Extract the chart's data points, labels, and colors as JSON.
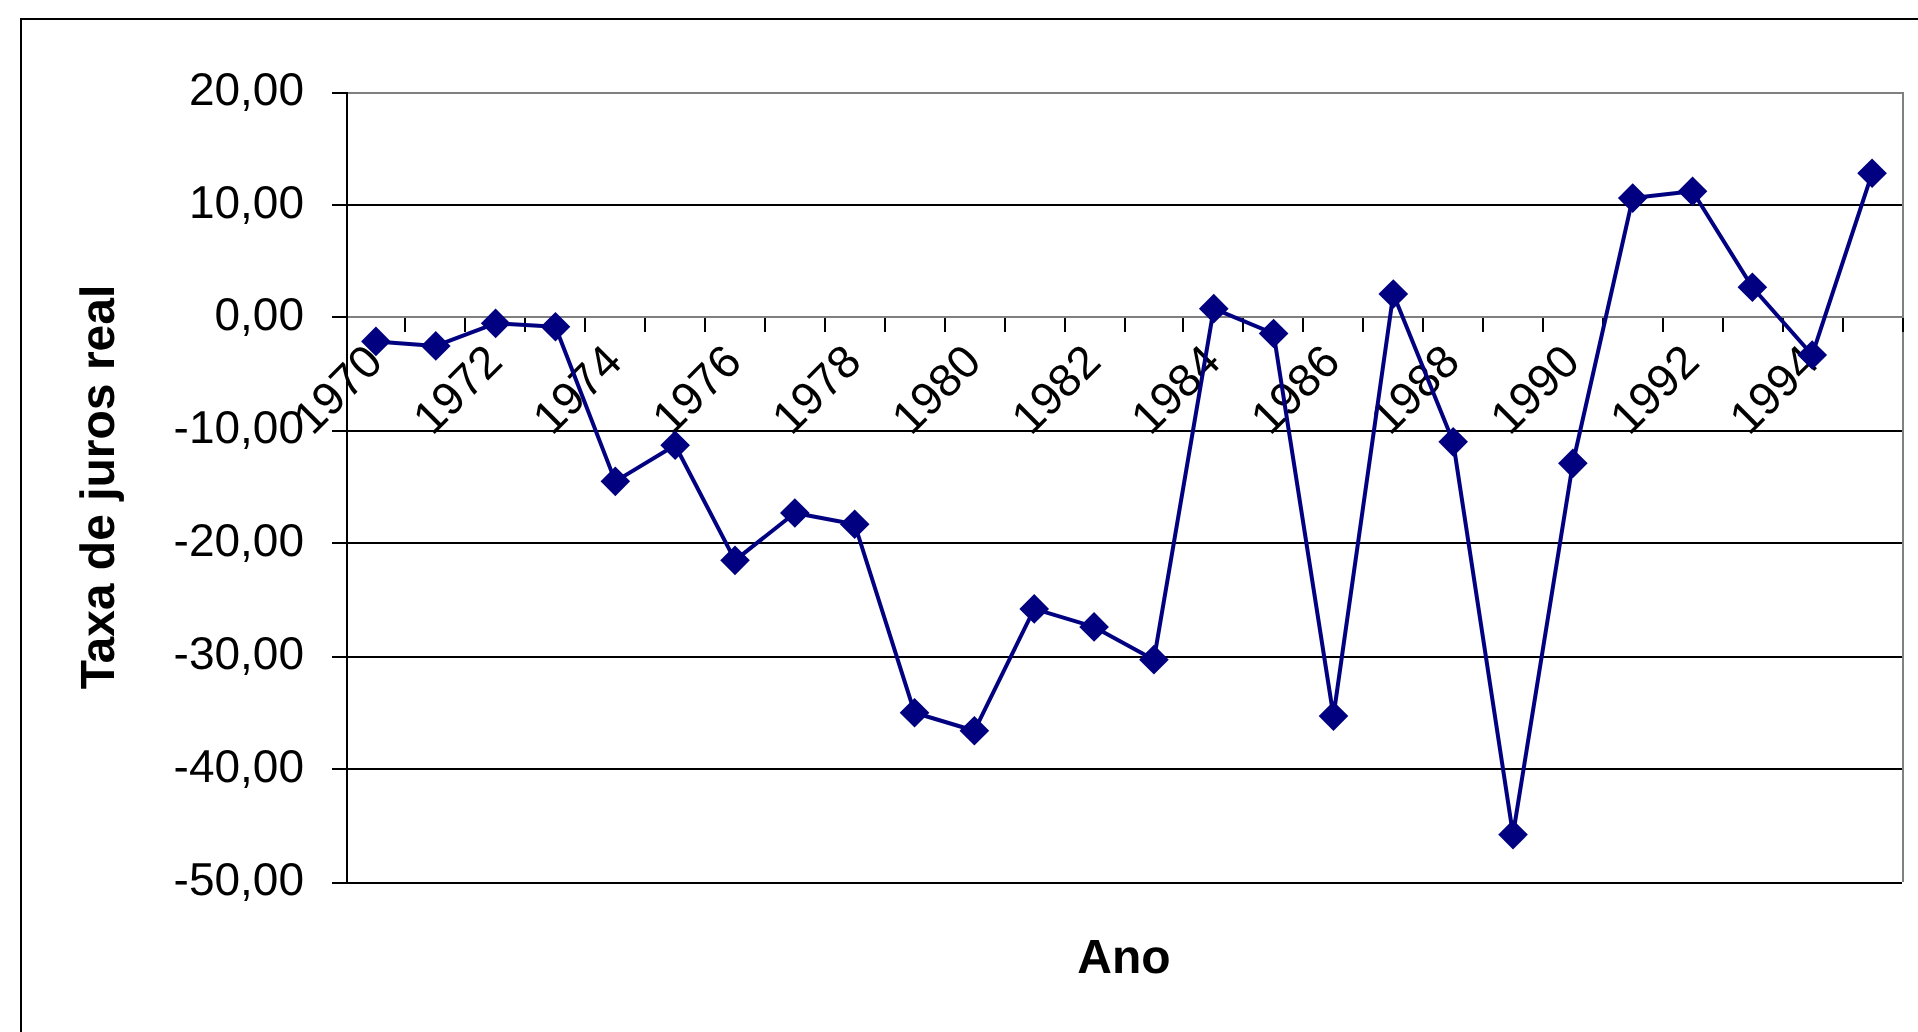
{
  "chart_data": {
    "type": "line",
    "xlabel": "Ano",
    "ylabel": "Taxa de juros real",
    "categories": [
      "1970",
      null,
      "1972",
      null,
      "1974",
      null,
      "1976",
      null,
      "1978",
      null,
      "1980",
      null,
      "1982",
      null,
      "1984",
      null,
      "1986",
      null,
      "1988",
      null,
      "1990",
      null,
      "1992",
      null,
      "1994",
      null
    ],
    "series": [
      {
        "color": "#000080",
        "values": [
          -2.1,
          -2.5,
          -0.5,
          -0.8,
          -14.5,
          -11.3,
          -21.5,
          -17.3,
          -18.3,
          -35.0,
          -36.6,
          -25.8,
          -27.4,
          -30.3,
          0.8,
          -1.4,
          -35.3,
          2.1,
          -11.0,
          -45.8,
          -12.9,
          10.6,
          11.2,
          2.7,
          -3.3,
          12.8
        ]
      }
    ],
    "ylim": [
      -50,
      20
    ],
    "yticks": [
      {
        "value": -50,
        "label": "-50,00"
      },
      {
        "value": -40,
        "label": "-40,00"
      },
      {
        "value": -30,
        "label": "-30,00"
      },
      {
        "value": -20,
        "label": "-20,00"
      },
      {
        "value": -10,
        "label": "-10,00"
      },
      {
        "value": 0,
        "label": "0,00"
      },
      {
        "value": 10,
        "label": "10,00"
      },
      {
        "value": 20,
        "label": "20,00"
      }
    ],
    "grid": "y",
    "legend": false,
    "marker": "diamond",
    "line_style": "solid"
  }
}
